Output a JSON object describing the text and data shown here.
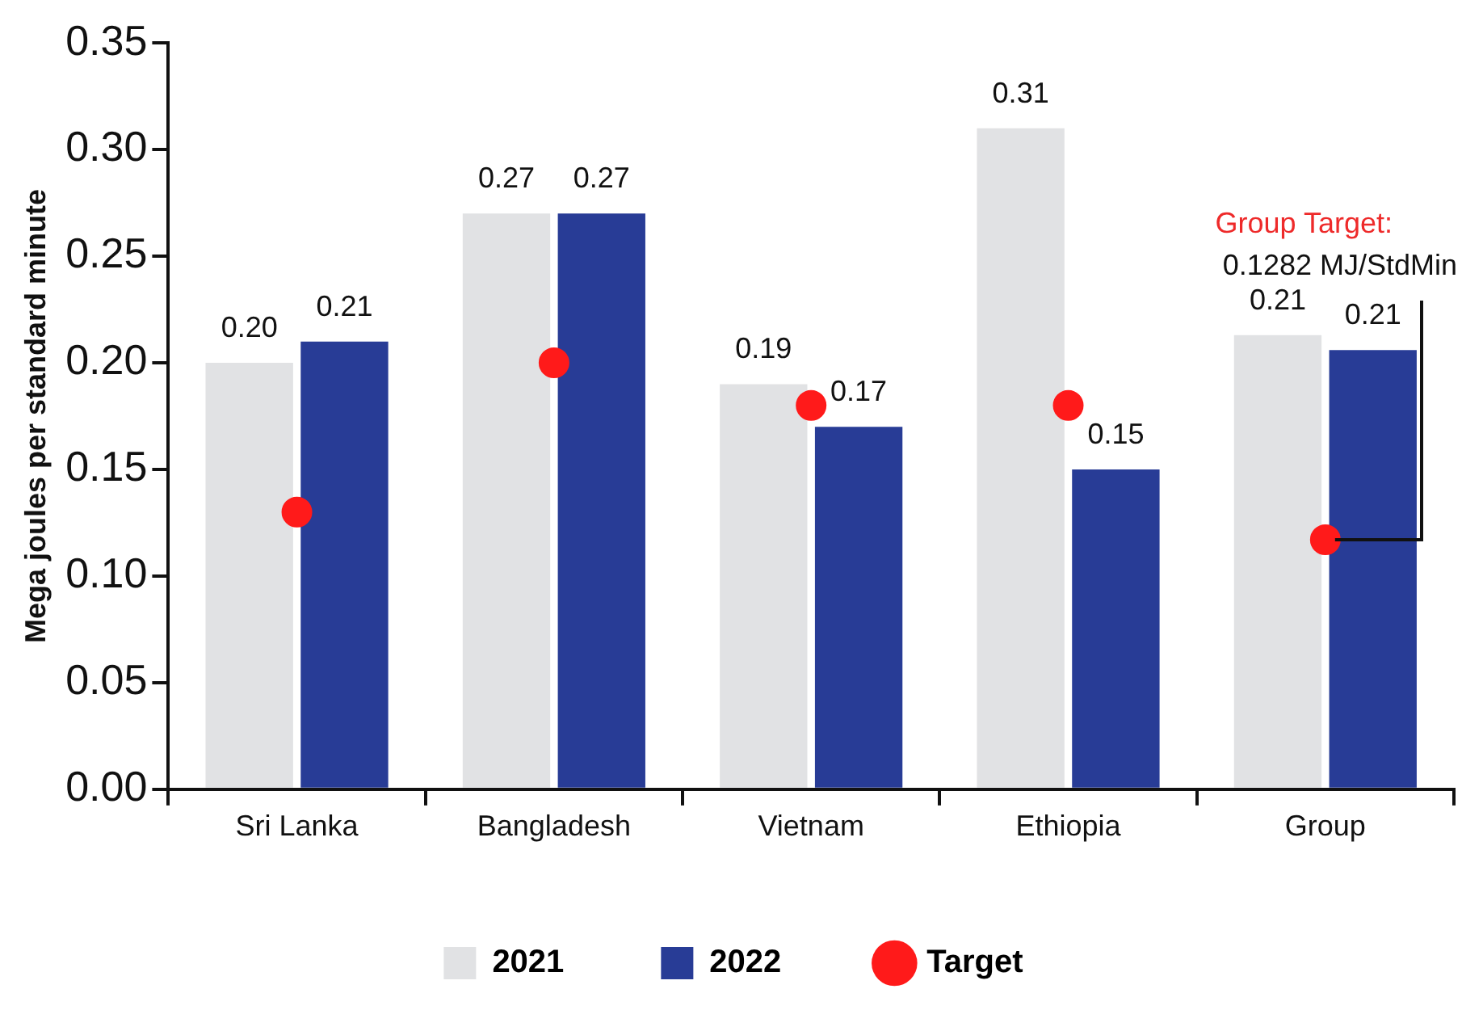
{
  "chart_data": {
    "type": "bar",
    "ylabel": "Mega joules per standard minute",
    "categories": [
      "Sri Lanka",
      "Bangladesh",
      "Vietnam",
      "Ethiopia",
      "Group"
    ],
    "series": [
      {
        "name": "2021",
        "color": "#e1e2e4",
        "values": [
          0.2,
          0.27,
          0.19,
          0.31,
          0.213
        ],
        "value_labels": [
          "0.20",
          "0.27",
          "0.19",
          "0.31",
          "0.21"
        ]
      },
      {
        "name": "2022",
        "color": "#283c96",
        "values": [
          0.21,
          0.27,
          0.17,
          0.15,
          0.206
        ],
        "value_labels": [
          "0.21",
          "0.27",
          "0.17",
          "0.15",
          "0.21"
        ]
      },
      {
        "name": "Target",
        "type": "scatter",
        "color": "#ff1a1a",
        "values": [
          0.13,
          0.2,
          0.18,
          0.18,
          0.117
        ]
      }
    ],
    "ylim": [
      0,
      0.35
    ],
    "yticks": [
      {
        "value": 0,
        "label": "0.00"
      },
      {
        "value": 0.05,
        "label": "0.05"
      },
      {
        "value": 0.1,
        "label": "0.10"
      },
      {
        "value": 0.15,
        "label": "0.15"
      },
      {
        "value": 0.2,
        "label": "0.20"
      },
      {
        "value": 0.25,
        "label": "0.25"
      },
      {
        "value": 0.3,
        "label": "0.30"
      },
      {
        "value": 0.35,
        "label": "0.35"
      }
    ],
    "annotations": [
      "Group Target:",
      {
        "text": "0.1282 MJ/StdMin",
        "x": "Group",
        "y": 0.117
      }
    ],
    "grid": false,
    "legend": "bottom",
    "marker": "circle"
  }
}
